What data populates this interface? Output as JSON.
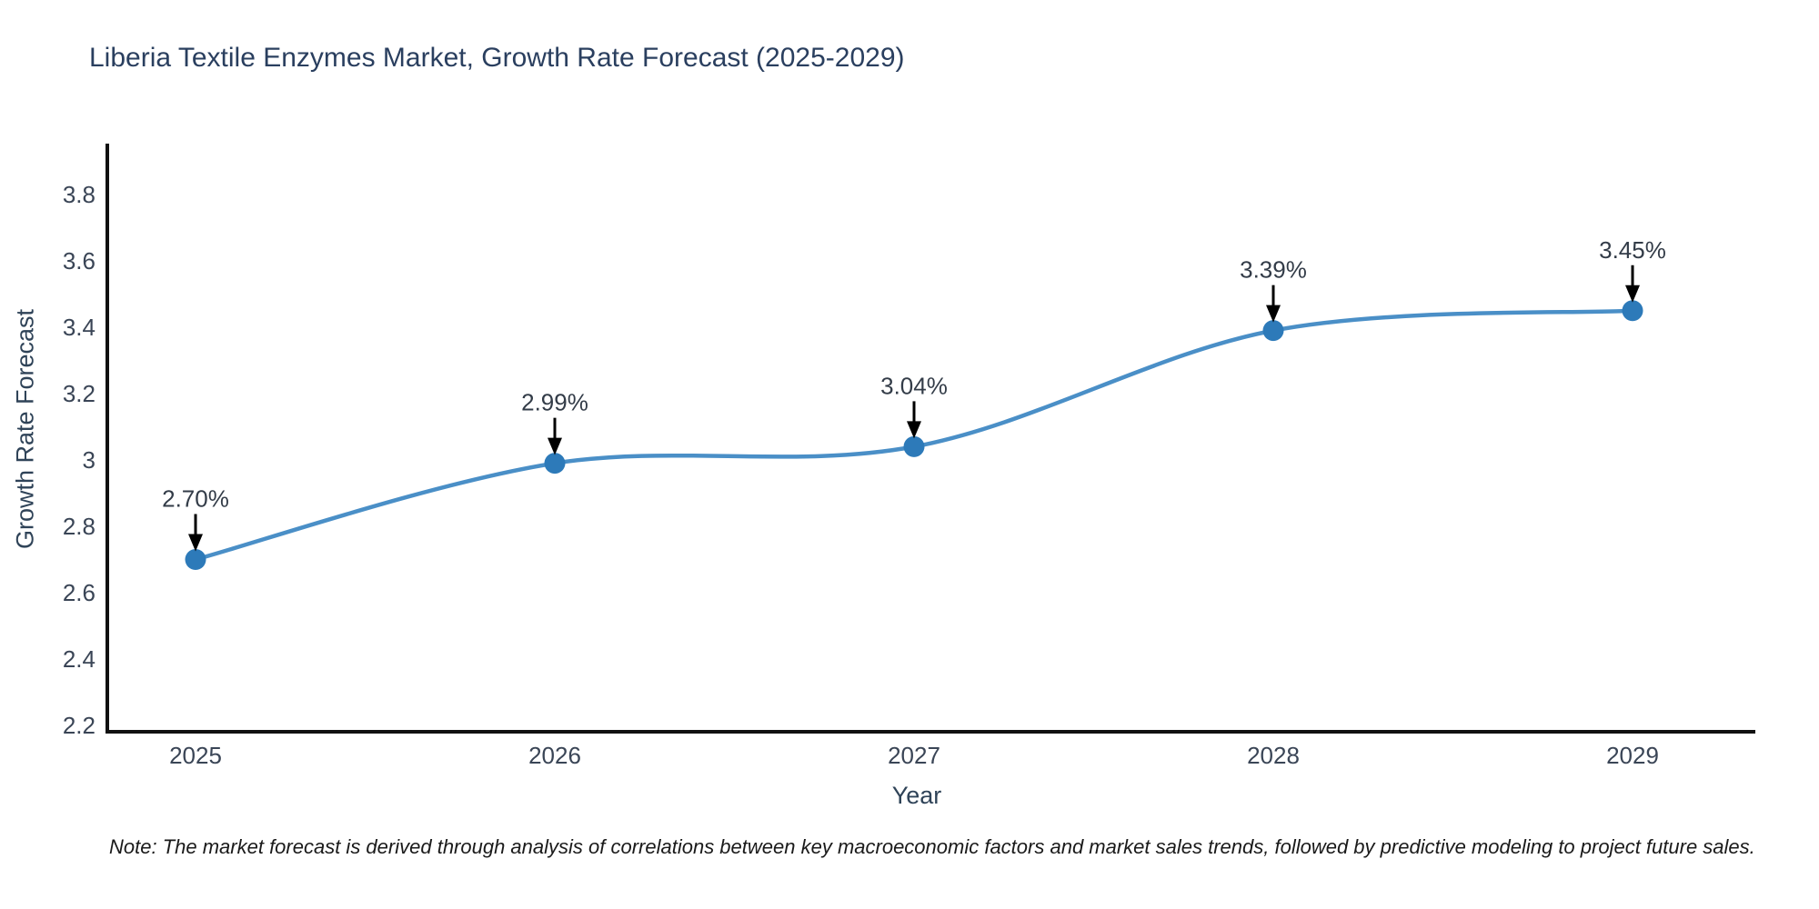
{
  "chart_data": {
    "type": "line",
    "title": "Liberia Textile Enzymes Market, Growth Rate Forecast (2025-2029)",
    "xlabel": "Year",
    "ylabel": "Growth Rate Forecast",
    "x": [
      2025,
      2026,
      2027,
      2028,
      2029
    ],
    "series": [
      {
        "name": "Growth Rate Forecast",
        "values": [
          2.7,
          2.99,
          3.04,
          3.39,
          3.45
        ]
      }
    ],
    "point_labels": [
      "2.70%",
      "2.99%",
      "3.04%",
      "3.39%",
      "3.45%"
    ],
    "yticks": [
      2.2,
      2.4,
      2.6,
      2.8,
      3,
      3.2,
      3.4,
      3.6,
      3.8
    ],
    "ylim": [
      2.18,
      3.97
    ],
    "grid": false,
    "legend_position": "none",
    "line_shape": "spline",
    "marker": "circle",
    "annotation_arrows": true,
    "note": "Note: The market forecast is derived through analysis of correlations between key macroeconomic factors and market sales trends, followed by predictive modeling to project future sales.",
    "colors": {
      "line": "#4a8fc7",
      "marker": "#2d7ab9",
      "axis": "#111111",
      "title_text": "#2a3f5f",
      "axis_title_text": "#2f4358",
      "tick_text": "#3a4556",
      "annotation_text": "#333c48",
      "arrow": "#000000",
      "note_text": "#1a1a1a",
      "background": "#ffffff"
    }
  }
}
